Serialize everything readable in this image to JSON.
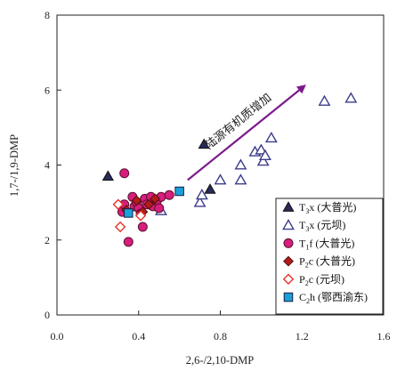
{
  "chart_data": {
    "type": "scatter",
    "title": "",
    "xlabel": "2,6-/2,10-DMP",
    "ylabel": "1,7-/1,9-DMP",
    "xlim": [
      0,
      1.6
    ],
    "ylim": [
      0,
      8
    ],
    "x_ticks": [
      "0.0",
      "0.4",
      "0.8",
      "1.2",
      "1.6"
    ],
    "y_ticks": [
      "0",
      "2",
      "4",
      "6",
      "8"
    ],
    "grid": false,
    "legend_position": "bottom-right",
    "annotation": {
      "text": "陆源有机质增加",
      "arrow_from": [
        0.64,
        3.6
      ],
      "arrow_to": [
        1.21,
        6.1
      ],
      "color": "#7b1a8c"
    },
    "series": [
      {
        "name": "T3x (大普光)",
        "legend_main": "T",
        "legend_sub": "3",
        "legend_tail": "x (大普光)",
        "marker": "triangle-filled",
        "color": "#2a2a5a",
        "points": [
          [
            0.25,
            3.7
          ],
          [
            0.72,
            4.55
          ],
          [
            0.75,
            3.35
          ]
        ]
      },
      {
        "name": "T3x (元坝)",
        "legend_main": "T",
        "legend_sub": "3",
        "legend_tail": "x (元坝)",
        "marker": "triangle-open",
        "color": "#3c3c8c",
        "points": [
          [
            0.51,
            2.78
          ],
          [
            0.7,
            3.0
          ],
          [
            0.71,
            3.2
          ],
          [
            0.8,
            3.6
          ],
          [
            0.9,
            3.6
          ],
          [
            0.9,
            4.0
          ],
          [
            0.97,
            4.35
          ],
          [
            1.0,
            4.4
          ],
          [
            1.01,
            4.1
          ],
          [
            1.02,
            4.25
          ],
          [
            1.05,
            4.72
          ],
          [
            1.31,
            5.7
          ],
          [
            1.44,
            5.78
          ]
        ]
      },
      {
        "name": "T1f (大普光)",
        "legend_main": "T",
        "legend_sub": "1",
        "legend_tail": "f (大普光)",
        "marker": "circle-filled",
        "color": "#d81e7c",
        "points": [
          [
            0.33,
            3.78
          ],
          [
            0.32,
            2.75
          ],
          [
            0.33,
            2.95
          ],
          [
            0.35,
            1.95
          ],
          [
            0.37,
            3.15
          ],
          [
            0.38,
            2.9
          ],
          [
            0.39,
            3.0
          ],
          [
            0.4,
            2.85
          ],
          [
            0.41,
            2.7
          ],
          [
            0.42,
            2.35
          ],
          [
            0.43,
            3.1
          ],
          [
            0.44,
            2.95
          ],
          [
            0.46,
            3.15
          ],
          [
            0.47,
            2.9
          ],
          [
            0.49,
            3.05
          ],
          [
            0.5,
            2.85
          ],
          [
            0.51,
            3.15
          ],
          [
            0.55,
            3.2
          ]
        ]
      },
      {
        "name": "P2c (大普光)",
        "legend_main": "P",
        "legend_sub": "2",
        "legend_tail": "c (大普光)",
        "marker": "diamond-filled",
        "color": "#b01c1c",
        "points": [
          [
            0.34,
            2.8
          ],
          [
            0.39,
            3.05
          ],
          [
            0.42,
            2.75
          ],
          [
            0.45,
            2.95
          ],
          [
            0.48,
            3.1
          ]
        ]
      },
      {
        "name": "P2c (元坝)",
        "legend_main": "P",
        "legend_sub": "2",
        "legend_tail": "c (元坝)",
        "marker": "diamond-open",
        "color": "#e8322a",
        "points": [
          [
            0.3,
            2.95
          ],
          [
            0.31,
            2.35
          ],
          [
            0.41,
            2.65
          ]
        ]
      },
      {
        "name": "C2h (鄂西渝东)",
        "legend_main": "C",
        "legend_sub": "2",
        "legend_tail": "h (鄂西渝东)",
        "marker": "square-filled",
        "color": "#1aa0d8",
        "points": [
          [
            0.35,
            2.72
          ],
          [
            0.6,
            3.3
          ]
        ]
      }
    ]
  }
}
